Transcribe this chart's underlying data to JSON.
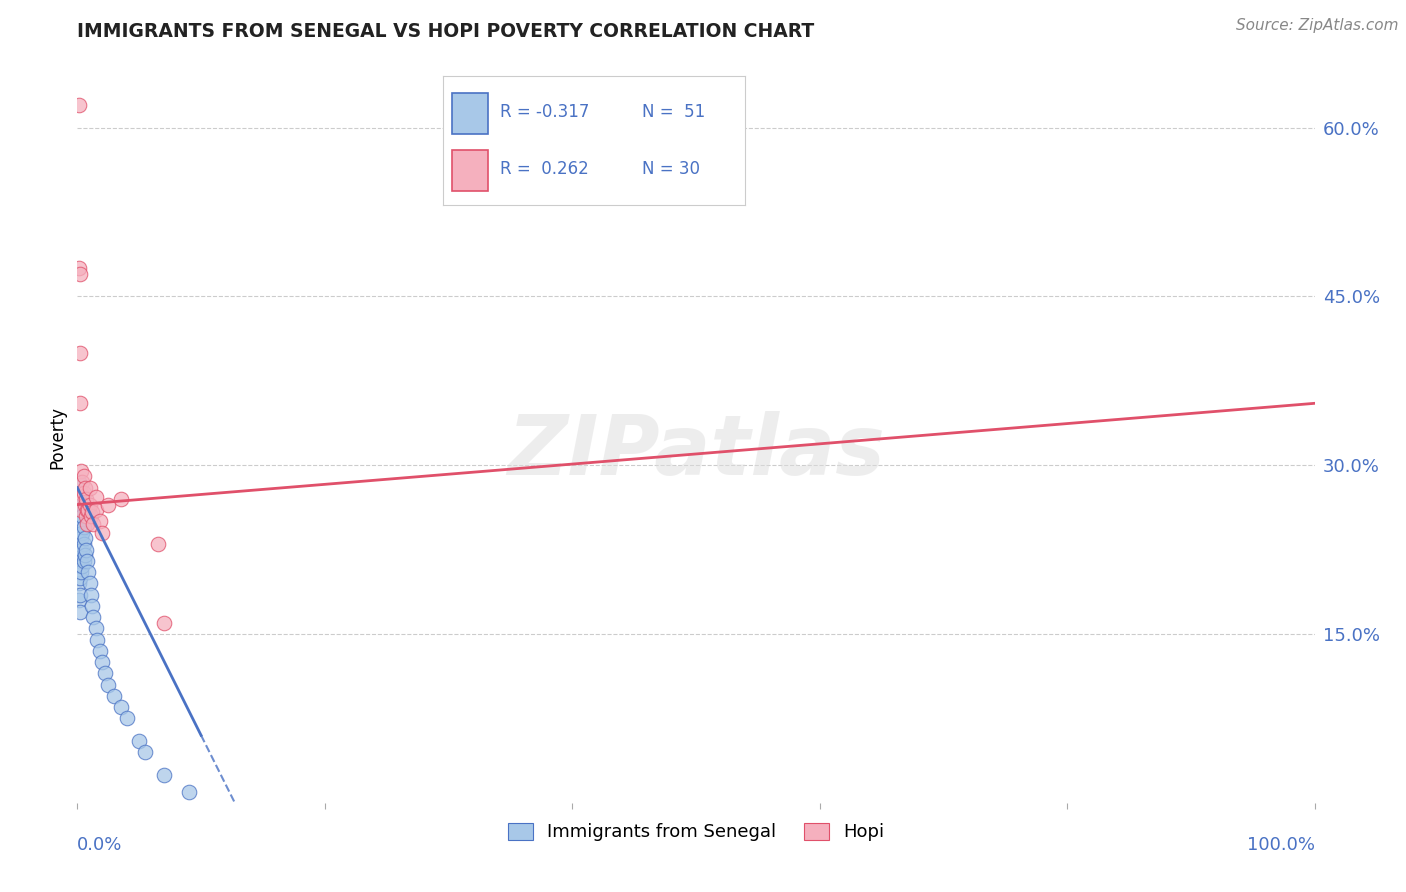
{
  "title": "IMMIGRANTS FROM SENEGAL VS HOPI POVERTY CORRELATION CHART",
  "source": "Source: ZipAtlas.com",
  "ylabel": "Poverty",
  "legend_blue_label": "Immigrants from Senegal",
  "legend_pink_label": "Hopi",
  "blue_color": "#a8c8e8",
  "pink_color": "#f5b0be",
  "blue_line_color": "#4a72c4",
  "pink_line_color": "#e0506a",
  "background_color": "#ffffff",
  "grid_color": "#cccccc",
  "title_color": "#222222",
  "source_color": "#888888",
  "axis_label_color": "#4a72c4",
  "right_tick_color": "#4a72c4",
  "senegal_x": [
    0.001,
    0.001,
    0.001,
    0.001,
    0.001,
    0.001,
    0.001,
    0.001,
    0.002,
    0.002,
    0.002,
    0.002,
    0.002,
    0.002,
    0.002,
    0.002,
    0.003,
    0.003,
    0.003,
    0.003,
    0.003,
    0.004,
    0.004,
    0.004,
    0.004,
    0.005,
    0.005,
    0.005,
    0.006,
    0.006,
    0.007,
    0.008,
    0.009,
    0.01,
    0.011,
    0.012,
    0.013,
    0.015,
    0.016,
    0.018,
    0.02,
    0.022,
    0.025,
    0.03,
    0.035,
    0.04,
    0.05,
    0.055,
    0.07,
    0.09
  ],
  "senegal_y": [
    0.285,
    0.27,
    0.255,
    0.24,
    0.225,
    0.21,
    0.195,
    0.18,
    0.275,
    0.26,
    0.245,
    0.228,
    0.215,
    0.2,
    0.185,
    0.17,
    0.265,
    0.25,
    0.235,
    0.218,
    0.205,
    0.255,
    0.24,
    0.225,
    0.21,
    0.245,
    0.23,
    0.215,
    0.235,
    0.22,
    0.225,
    0.215,
    0.205,
    0.195,
    0.185,
    0.175,
    0.165,
    0.155,
    0.145,
    0.135,
    0.125,
    0.115,
    0.105,
    0.095,
    0.085,
    0.075,
    0.055,
    0.045,
    0.025,
    0.01
  ],
  "hopi_x": [
    0.001,
    0.001,
    0.002,
    0.002,
    0.002,
    0.003,
    0.003,
    0.003,
    0.004,
    0.004,
    0.005,
    0.005,
    0.006,
    0.006,
    0.007,
    0.007,
    0.008,
    0.008,
    0.009,
    0.01,
    0.01,
    0.011,
    0.012,
    0.013,
    0.015,
    0.015,
    0.018,
    0.02,
    0.025,
    0.035,
    0.065,
    0.07
  ],
  "hopi_y": [
    0.62,
    0.475,
    0.47,
    0.4,
    0.355,
    0.295,
    0.275,
    0.26,
    0.285,
    0.27,
    0.29,
    0.275,
    0.28,
    0.265,
    0.27,
    0.255,
    0.26,
    0.248,
    0.26,
    0.28,
    0.265,
    0.255,
    0.258,
    0.248,
    0.272,
    0.26,
    0.25,
    0.24,
    0.265,
    0.27,
    0.23,
    0.16
  ],
  "xlim": [
    0.0,
    1.0
  ],
  "ylim": [
    0.0,
    0.65
  ],
  "right_yticks": [
    0.6,
    0.45,
    0.3,
    0.15
  ],
  "right_yticklabels": [
    "60.0%",
    "45.0%",
    "30.0%",
    "15.0%"
  ],
  "grid_yticks": [
    0.6,
    0.45,
    0.3,
    0.15
  ],
  "xtick_positions": [
    0.0,
    0.2,
    0.4,
    0.6,
    0.8,
    1.0
  ],
  "blue_line_x_solid_end": 0.1,
  "blue_line_x_dashed_end": 0.155,
  "pink_line_x_start": 0.0,
  "pink_line_x_end": 1.0,
  "pink_line_y_start": 0.265,
  "pink_line_y_end": 0.355,
  "blue_line_y_intercept": 0.28,
  "blue_line_slope": -2.2
}
